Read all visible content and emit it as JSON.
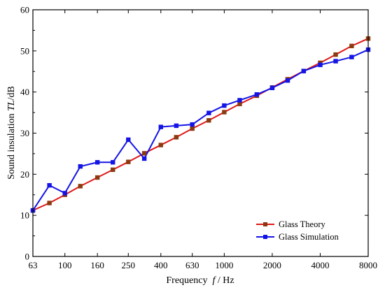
{
  "chart_data": {
    "type": "line",
    "xlabel_parts": [
      "Frequency  ",
      "f",
      " / Hz"
    ],
    "ylabel_parts": [
      "Sound insulation ",
      "TL",
      "/dB"
    ],
    "x_scale": "log",
    "xlim": [
      63,
      8000
    ],
    "ylim": [
      0,
      60
    ],
    "x_ticks": [
      63,
      100,
      160,
      250,
      400,
      630,
      1000,
      2000,
      4000,
      8000
    ],
    "y_ticks": [
      0,
      10,
      20,
      30,
      40,
      50,
      60
    ],
    "legend_position": "bottom-right",
    "grid": false,
    "series": [
      {
        "name": "Glass Theory",
        "color": "#e01818",
        "marker_color": "#8b3a10",
        "x": [
          63,
          80,
          100,
          125,
          160,
          200,
          250,
          315,
          400,
          500,
          630,
          800,
          1000,
          1250,
          1600,
          2000,
          2500,
          3150,
          4000,
          5000,
          6300,
          8000
        ],
        "y": [
          11.2,
          13.0,
          15.0,
          17.1,
          19.2,
          21.1,
          23.0,
          25.1,
          27.1,
          29.0,
          31.1,
          33.1,
          35.1,
          37.1,
          39.1,
          41.1,
          43.1,
          45.1,
          47.1,
          49.1,
          51.2,
          53.0
        ]
      },
      {
        "name": "Glass Simulation",
        "color": "#1414e6",
        "marker_color": "#1414e6",
        "x": [
          63,
          80,
          100,
          125,
          160,
          200,
          250,
          315,
          400,
          500,
          630,
          800,
          1000,
          1250,
          1600,
          2000,
          2500,
          3150,
          4000,
          5000,
          6300,
          8000
        ],
        "y": [
          11.2,
          17.3,
          15.4,
          21.9,
          22.9,
          22.9,
          28.4,
          23.8,
          31.5,
          31.8,
          32.1,
          34.9,
          36.7,
          38.0,
          39.4,
          41.0,
          42.8,
          45.1,
          46.6,
          47.5,
          48.5,
          50.3
        ]
      }
    ]
  }
}
